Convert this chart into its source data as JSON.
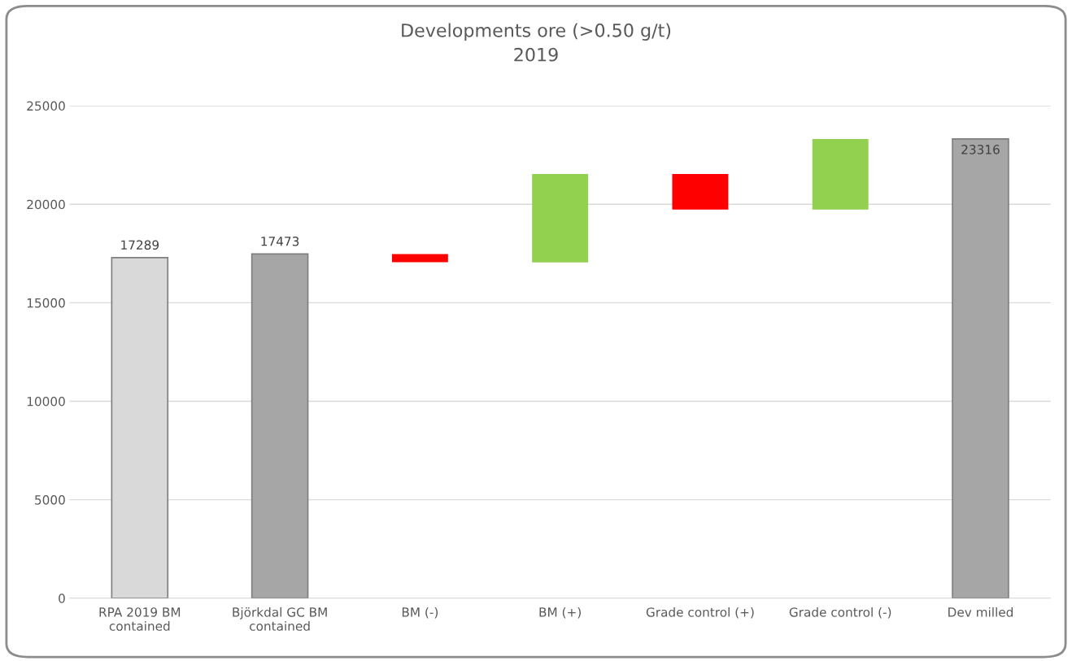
{
  "chart_data": {
    "type": "bar",
    "title": "Developments ore (>0.50 g/t)\n2019",
    "categories": [
      "RPA 2019 BM\ncontained",
      "Björkdal GC BM\ncontained",
      "BM (-)",
      "BM (+)",
      "Grade control (+)",
      "Grade control (-)",
      "Dev milled"
    ],
    "values": [
      17289,
      17473,
      413,
      4490,
      1812,
      3588,
      23316
    ],
    "base": [
      0,
      0,
      17060,
      17050,
      19728,
      19728,
      0
    ],
    "colors": [
      "#d9d9d9",
      "#a6a6a6",
      "#ff0000",
      "#92d050",
      "#ff0000",
      "#92d050",
      "#a6a6a6"
    ],
    "value_labels": [
      "17289",
      "17473",
      null,
      null,
      null,
      null,
      "23316"
    ],
    "ylim": [
      0,
      25000
    ],
    "yticks": [
      0,
      5000,
      10000,
      15000,
      20000,
      25000
    ],
    "grid": "y",
    "legend": false
  }
}
